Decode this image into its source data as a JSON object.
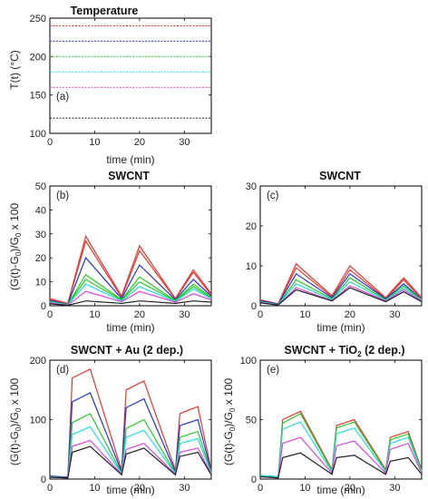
{
  "colors": {
    "red": "#e8352f",
    "blue": "#2233dd",
    "green": "#22cc22",
    "cyan": "#22dddd",
    "magenta": "#dd44dd",
    "black": "#222222"
  },
  "chart_data": [
    {
      "id": "a",
      "type": "line",
      "title": "Temperature",
      "panel_label": "(a)",
      "xlabel": "time (min)",
      "ylabel": "T(t) (°C)",
      "xlim": [
        0,
        36
      ],
      "ylim": [
        100,
        250
      ],
      "xticks": [
        "0",
        "10",
        "20",
        "30"
      ],
      "yticks": [
        "100",
        "150",
        "200",
        "250"
      ],
      "series": [
        {
          "color": "red",
          "x": [
            0,
            36
          ],
          "y": [
            240,
            240
          ]
        },
        {
          "color": "blue",
          "x": [
            0,
            36
          ],
          "y": [
            220,
            220
          ]
        },
        {
          "color": "green",
          "x": [
            0,
            36
          ],
          "y": [
            200,
            200
          ]
        },
        {
          "color": "cyan",
          "x": [
            0,
            36
          ],
          "y": [
            180,
            180
          ]
        },
        {
          "color": "magenta",
          "x": [
            0,
            36
          ],
          "y": [
            160,
            160
          ]
        },
        {
          "color": "black",
          "x": [
            0,
            36
          ],
          "y": [
            120,
            120
          ]
        }
      ]
    },
    {
      "id": "b",
      "type": "line",
      "title": "SWCNT",
      "panel_label": "(b)",
      "xlabel": "time (min)",
      "ylabel": "(G(t)-G0)/G0 x 100",
      "xlim": [
        0,
        36
      ],
      "ylim": [
        0,
        50
      ],
      "xticks": [
        "0",
        "10",
        "20",
        "30"
      ],
      "yticks": [
        "0",
        "10",
        "20",
        "30",
        "40",
        "50"
      ],
      "x": [
        0,
        4,
        8,
        16,
        20,
        28,
        32,
        36
      ],
      "series": [
        {
          "color": "red",
          "y": [
            3,
            1,
            29,
            4,
            25,
            3,
            15,
            5
          ]
        },
        {
          "color": "red",
          "y": [
            2.5,
            0.8,
            27,
            3.5,
            23,
            2.8,
            14,
            4.5
          ]
        },
        {
          "color": "blue",
          "y": [
            2.2,
            0.6,
            20,
            3,
            17,
            2.5,
            11,
            4
          ]
        },
        {
          "color": "green",
          "y": [
            1.8,
            0.5,
            13,
            2.5,
            12,
            2.2,
            9,
            3.5
          ]
        },
        {
          "color": "green",
          "y": [
            1.6,
            0.5,
            11,
            2.3,
            10,
            2,
            8,
            3.2
          ]
        },
        {
          "color": "cyan",
          "y": [
            1.5,
            0.4,
            9,
            2,
            8,
            1.8,
            7,
            3
          ]
        },
        {
          "color": "magenta",
          "y": [
            1.2,
            0.3,
            6,
            1.7,
            6,
            1.5,
            5,
            2.5
          ]
        },
        {
          "color": "black",
          "y": [
            0.8,
            0.2,
            2,
            1,
            2,
            1,
            2,
            1.5
          ]
        }
      ]
    },
    {
      "id": "c",
      "type": "line",
      "title": "SWCNT",
      "panel_label": "(c)",
      "xlabel": "time (min)",
      "ylabel": "",
      "xlim": [
        0,
        36
      ],
      "ylim": [
        0,
        30
      ],
      "xticks": [
        "0",
        "10",
        "20",
        "30"
      ],
      "yticks": [
        "0",
        "10",
        "20",
        "30"
      ],
      "x": [
        0,
        4,
        8,
        16,
        20,
        28,
        32,
        36
      ],
      "series": [
        {
          "color": "red",
          "y": [
            1.5,
            0.5,
            10.5,
            2.5,
            10,
            2,
            7,
            2
          ]
        },
        {
          "color": "red",
          "y": [
            1.3,
            0.4,
            9.5,
            2.2,
            9,
            1.8,
            6.5,
            1.8
          ]
        },
        {
          "color": "blue",
          "y": [
            1.2,
            0.4,
            8,
            2,
            8,
            1.7,
            5.5,
            1.6
          ]
        },
        {
          "color": "green",
          "y": [
            1,
            0.3,
            6.5,
            1.7,
            7,
            1.5,
            5,
            1.5
          ]
        },
        {
          "color": "cyan",
          "y": [
            0.9,
            0.3,
            5.5,
            1.5,
            6,
            1.3,
            4.5,
            1.3
          ]
        },
        {
          "color": "magenta",
          "y": [
            0.8,
            0.2,
            4.5,
            1.3,
            5,
            1.2,
            4,
            1.2
          ]
        },
        {
          "color": "black",
          "y": [
            0.7,
            0.2,
            4,
            1.2,
            4.5,
            1,
            3.5,
            1
          ]
        }
      ]
    },
    {
      "id": "d",
      "type": "line",
      "title": "SWCNT + Au  (2 dep.)",
      "panel_label": "(d)",
      "xlabel": "time (min)",
      "ylabel": "(G(t)-G0)/G0 x 100",
      "xlim": [
        0,
        36
      ],
      "ylim": [
        0,
        200
      ],
      "xticks": [
        "0",
        "10",
        "20",
        "30"
      ],
      "yticks": [
        "0",
        "100",
        "200"
      ],
      "x": [
        0,
        4,
        5,
        9,
        16,
        17,
        21,
        28,
        29,
        33,
        36
      ],
      "series": [
        {
          "color": "red",
          "y": [
            5,
            3,
            170,
            185,
            15,
            150,
            165,
            15,
            110,
            122,
            15
          ]
        },
        {
          "color": "blue",
          "y": [
            5,
            3,
            130,
            145,
            12,
            120,
            135,
            12,
            90,
            100,
            12
          ]
        },
        {
          "color": "green",
          "y": [
            4,
            2,
            95,
            110,
            10,
            85,
            100,
            10,
            70,
            80,
            10
          ]
        },
        {
          "color": "cyan",
          "y": [
            4,
            2,
            75,
            88,
            9,
            70,
            82,
            9,
            60,
            68,
            9
          ]
        },
        {
          "color": "magenta",
          "y": [
            3,
            2,
            55,
            65,
            8,
            50,
            60,
            8,
            45,
            52,
            8
          ]
        },
        {
          "color": "black",
          "y": [
            3,
            2,
            45,
            55,
            7,
            42,
            52,
            7,
            38,
            45,
            7
          ]
        }
      ]
    },
    {
      "id": "e",
      "type": "line",
      "title": "SWCNT + TiO2  (2 dep.)",
      "panel_label": "(e)",
      "xlabel": "time (min)",
      "ylabel": "(G(t)-G0)/G0 x 100",
      "xlim": [
        0,
        36
      ],
      "ylim": [
        0,
        100
      ],
      "xticks": [
        "0",
        "10",
        "20",
        "30"
      ],
      "yticks": [
        "0",
        "50",
        "100"
      ],
      "x": [
        0,
        4,
        5,
        9,
        16,
        17,
        21,
        28,
        29,
        33,
        36
      ],
      "series": [
        {
          "color": "red",
          "y": [
            3,
            2,
            50,
            57,
            8,
            45,
            50,
            8,
            35,
            40,
            8
          ]
        },
        {
          "color": "green",
          "y": [
            3,
            2,
            47,
            55,
            7,
            43,
            48,
            7,
            33,
            38,
            7
          ]
        },
        {
          "color": "cyan",
          "y": [
            3,
            2,
            42,
            48,
            6,
            38,
            43,
            6,
            30,
            35,
            6
          ]
        },
        {
          "color": "magenta",
          "y": [
            2,
            1,
            30,
            35,
            5,
            28,
            32,
            5,
            25,
            30,
            5
          ]
        },
        {
          "color": "black",
          "y": [
            2,
            1,
            18,
            22,
            4,
            18,
            20,
            4,
            15,
            18,
            4
          ]
        }
      ]
    }
  ]
}
